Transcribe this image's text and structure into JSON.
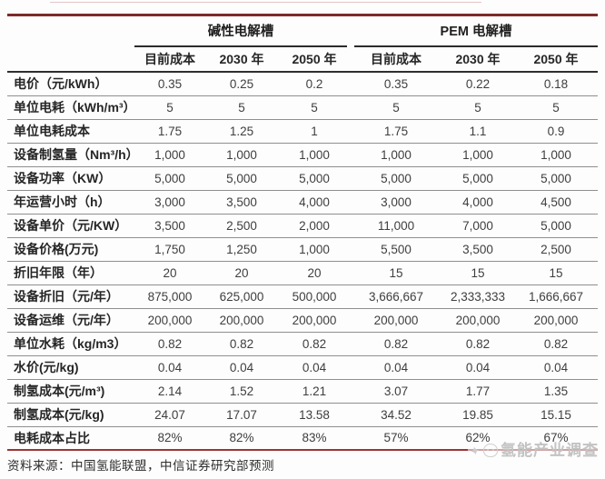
{
  "colors": {
    "accent_line_top": "#7e2a2a",
    "accent_line_bottom": "#9e3434",
    "row_separator": "#8f8f8f",
    "watermark_gray": "#c3c3c3"
  },
  "chart_data": {
    "type": "table",
    "title": "",
    "column_groups": [
      {
        "label": "碱性电解槽",
        "span": 3
      },
      {
        "label": "PEM 电解槽",
        "span": 3
      }
    ],
    "columns": [
      "目前成本",
      "2030 年",
      "2050 年",
      "目前成本",
      "2030 年",
      "2050 年"
    ],
    "rows": [
      {
        "label": "电价（元/kWh）",
        "values": [
          "0.35",
          "0.25",
          "0.2",
          "0.35",
          "0.22",
          "0.18"
        ]
      },
      {
        "label": "单位电耗（kWh/m³）",
        "values": [
          "5",
          "5",
          "5",
          "5",
          "5",
          "5"
        ]
      },
      {
        "label": "单位电耗成本",
        "values": [
          "1.75",
          "1.25",
          "1",
          "1.75",
          "1.1",
          "0.9"
        ]
      },
      {
        "label": "设备制氢量（Nm³/h）",
        "values": [
          "1,000",
          "1,000",
          "1,000",
          "1,000",
          "1,000",
          "1,000"
        ]
      },
      {
        "label": "设备功率（KW）",
        "values": [
          "5,000",
          "5,000",
          "5,000",
          "5,000",
          "5,000",
          "5,000"
        ]
      },
      {
        "label": "年运营小时（h）",
        "values": [
          "3,000",
          "3,500",
          "4,000",
          "3,000",
          "4,000",
          "4,500"
        ]
      },
      {
        "label": "设备单价（元/KW）",
        "values": [
          "3,500",
          "2,500",
          "2,000",
          "11,000",
          "7,000",
          "5,000"
        ]
      },
      {
        "label": "设备价格(万元)",
        "values": [
          "1,750",
          "1,250",
          "1,000",
          "5,500",
          "3,500",
          "2,500"
        ]
      },
      {
        "label": "折旧年限（年）",
        "values": [
          "20",
          "20",
          "20",
          "15",
          "15",
          "15"
        ]
      },
      {
        "label": "设备折旧（元/年）",
        "values": [
          "875,000",
          "625,000",
          "500,000",
          "3,666,667",
          "2,333,333",
          "1,666,667"
        ]
      },
      {
        "label": "设备运维（元/年）",
        "values": [
          "200,000",
          "200,000",
          "200,000",
          "200,000",
          "200,000",
          "200,000"
        ]
      },
      {
        "label": "单位水耗（kg/m3）",
        "values": [
          "0.82",
          "0.82",
          "0.82",
          "0.82",
          "0.82",
          "0.82"
        ]
      },
      {
        "label": "水价(元/kg)",
        "values": [
          "0.04",
          "0.04",
          "0.04",
          "0.04",
          "0.04",
          "0.04"
        ]
      },
      {
        "label": "制氢成本(元/m³)",
        "values": [
          "2.14",
          "1.52",
          "1.21",
          "3.07",
          "1.77",
          "1.35"
        ]
      },
      {
        "label": "制氢成本(元/kg)",
        "values": [
          "24.07",
          "17.07",
          "13.58",
          "34.52",
          "19.85",
          "15.15"
        ]
      },
      {
        "label": "电耗成本占比",
        "values": [
          "82%",
          "82%",
          "83%",
          "57%",
          "62%",
          "67%"
        ]
      }
    ],
    "source_note": "资料来源：中国氢能联盟，中信证券研究部预测",
    "watermark_text": "氢能产业调查"
  }
}
